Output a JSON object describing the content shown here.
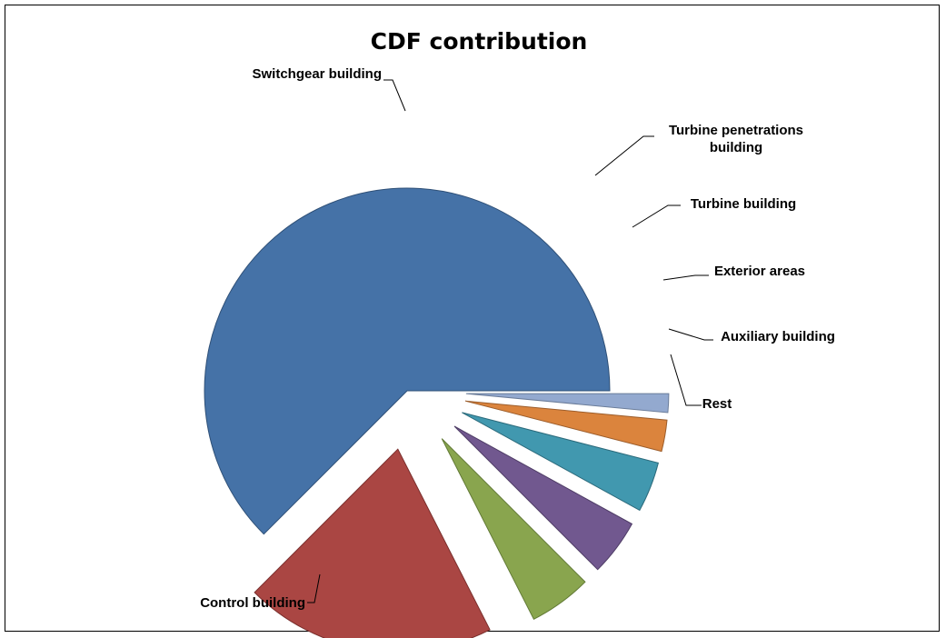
{
  "chart_data": {
    "type": "pie",
    "title": "CDF contribution",
    "slices": [
      {
        "label": "Control building",
        "value": 62.5,
        "color": "#4572A7",
        "stroke": "#2f5077"
      },
      {
        "label": "Switchgear building",
        "value": 20.0,
        "color": "#AA4643",
        "stroke": "#7a2f2d"
      },
      {
        "label": "Turbine penetrations building",
        "value": 5.0,
        "color": "#89A54E",
        "stroke": "#627a36"
      },
      {
        "label": "Turbine building",
        "value": 4.5,
        "color": "#71588F",
        "stroke": "#4f3d66"
      },
      {
        "label": "Exterior areas",
        "value": 4.0,
        "color": "#4198AF",
        "stroke": "#2c6b7c"
      },
      {
        "label": "Auxiliary building",
        "value": 2.5,
        "color": "#DB843D",
        "stroke": "#9c5d2b"
      },
      {
        "label": "Rest",
        "value": 1.5,
        "color": "#93A9CF",
        "stroke": "#6a7c99"
      }
    ]
  }
}
